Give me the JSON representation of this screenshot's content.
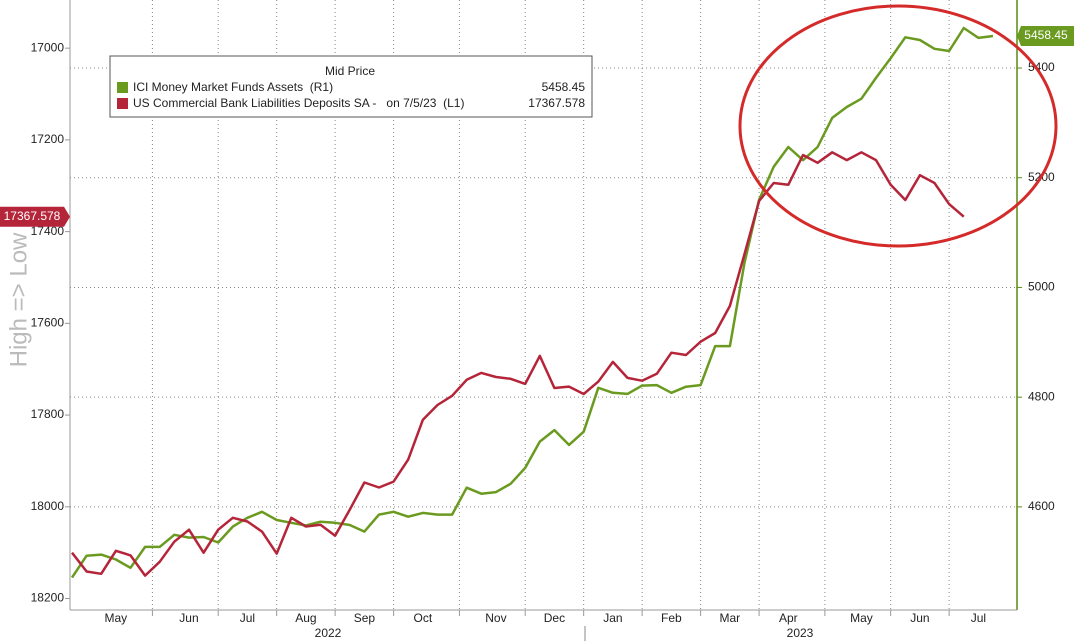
{
  "chart_data": {
    "type": "line",
    "legend_title": "Mid Price",
    "y_label": "High => Low",
    "annotations": [
      "2022",
      "2023"
    ],
    "categories": [
      null,
      null,
      null,
      "May",
      null,
      null,
      null,
      null,
      "Jun",
      null,
      null,
      null,
      "Jul",
      null,
      null,
      null,
      "Aug",
      null,
      null,
      null,
      "Sep",
      null,
      null,
      null,
      "Oct",
      null,
      null,
      null,
      null,
      "Nov",
      null,
      null,
      null,
      "Dec",
      null,
      null,
      null,
      "Jan",
      null,
      null,
      null,
      "Feb",
      null,
      null,
      null,
      "Mar",
      null,
      null,
      null,
      "Apr",
      null,
      null,
      null,
      null,
      "May",
      null,
      null,
      null,
      "Jun",
      null,
      null,
      null,
      "Jul",
      null
    ],
    "ylim": [
      18225,
      16895
    ],
    "yticks": [
      17000,
      17200,
      17400,
      17600,
      17800,
      18000,
      18200
    ],
    "y2lim": [
      4412,
      5524
    ],
    "y2ticks": [
      4600,
      4800,
      5000,
      5200,
      5400
    ],
    "grid": true,
    "series": [
      {
        "name": "ICI Money Market Funds Assets  (R1)",
        "color": "#6a9a1f",
        "axis": "y2",
        "values": [
          4471,
          4511,
          4513,
          4504,
          4489,
          4527,
          4527,
          4549,
          4544,
          4545,
          4535,
          4564,
          4580,
          4591,
          4576,
          4571,
          4566,
          4573,
          4571,
          4567,
          4555,
          4586,
          4591,
          4582,
          4589,
          4586,
          4586,
          4635,
          4624,
          4627,
          4642,
          4671,
          4719,
          4740,
          4713,
          4737,
          4817,
          4808,
          4806,
          4821,
          4822,
          4808,
          4819,
          4822,
          4893,
          4893,
          5045,
          5160,
          5220,
          5256,
          5232,
          5256,
          5309,
          5329,
          5344,
          5382,
          5418,
          5456,
          5451,
          5435,
          5431,
          5473,
          5455,
          5458.45
        ]
      },
      {
        "name": "US Commercial Bank Liabilities Deposits SA -   on 7/5/23  (L1)",
        "color": "#b5253a",
        "axis": "y",
        "values": [
          18100,
          18141,
          18146,
          18096,
          18106,
          18150,
          18120,
          18076,
          18050,
          18100,
          18050,
          18024,
          18032,
          18054,
          18102,
          18024,
          18043,
          18039,
          18063,
          18006,
          17947,
          17958,
          17945,
          17897,
          17810,
          17778,
          17758,
          17723,
          17708,
          17717,
          17721,
          17732,
          17671,
          17741,
          17738,
          17754,
          17727,
          17684,
          17719,
          17725,
          17710,
          17664,
          17669,
          17640,
          17621,
          17562,
          17449,
          17333,
          17294,
          17298,
          17233,
          17250,
          17227,
          17244,
          17227,
          17244,
          17298,
          17331,
          17277,
          17294,
          17340,
          17367.578,
          null,
          null
        ]
      }
    ]
  }
}
